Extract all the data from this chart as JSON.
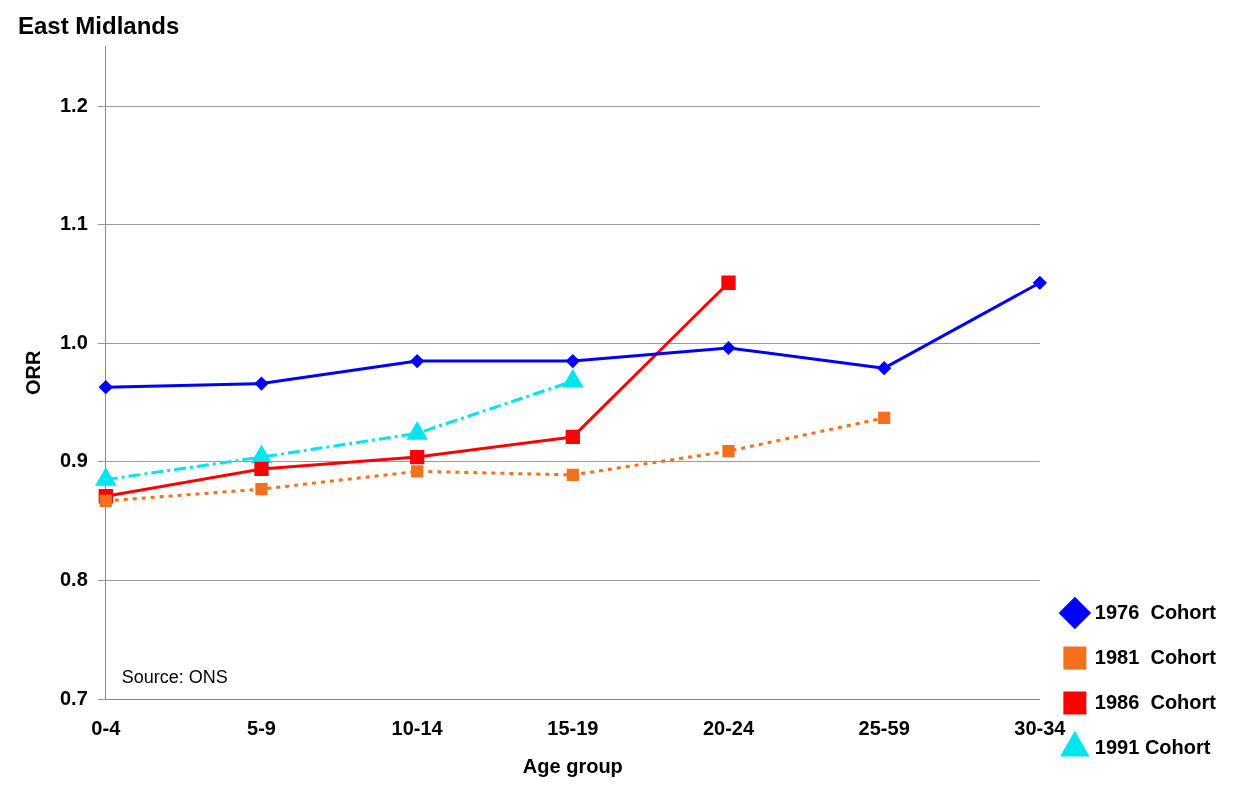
{
  "chart_data": {
    "type": "line",
    "title": "East Midlands",
    "xlabel": "Age group",
    "ylabel": "ORR",
    "categories": [
      "0-4",
      "5-9",
      "10-14",
      "15-19",
      "20-24",
      "25-59",
      "30-34"
    ],
    "series": [
      {
        "name": "1976  Cohort",
        "color": "#0000ff",
        "marker": "diamond",
        "line_style": "solid",
        "values": [
          0.963,
          0.966,
          0.985,
          0.985,
          0.996,
          0.979,
          1.051
        ]
      },
      {
        "name": "1981  Cohort",
        "color": "#f4701c",
        "marker": "square",
        "line_style": "dotted",
        "values": [
          0.867,
          0.877,
          0.892,
          0.889,
          0.909,
          0.937,
          null
        ]
      },
      {
        "name": "1986  Cohort",
        "color": "#ff0000",
        "marker": "square",
        "line_style": "solid",
        "values": [
          0.871,
          0.894,
          0.904,
          0.921,
          1.051,
          null,
          null
        ]
      },
      {
        "name": "1991 Cohort",
        "color": "#00e5ee",
        "marker": "triangle",
        "line_style": "dashed",
        "values": [
          0.885,
          0.904,
          0.924,
          0.968,
          null,
          null,
          null
        ]
      }
    ],
    "ylim": [
      0.7,
      1.25
    ],
    "yticks": [
      0.7,
      0.8,
      0.9,
      {
        "value": 1,
        "label": "1.0"
      },
      1.1,
      1.2
    ],
    "grid": "y",
    "legend": "bottom right",
    "annotations": [
      "Source: ONS"
    ]
  }
}
